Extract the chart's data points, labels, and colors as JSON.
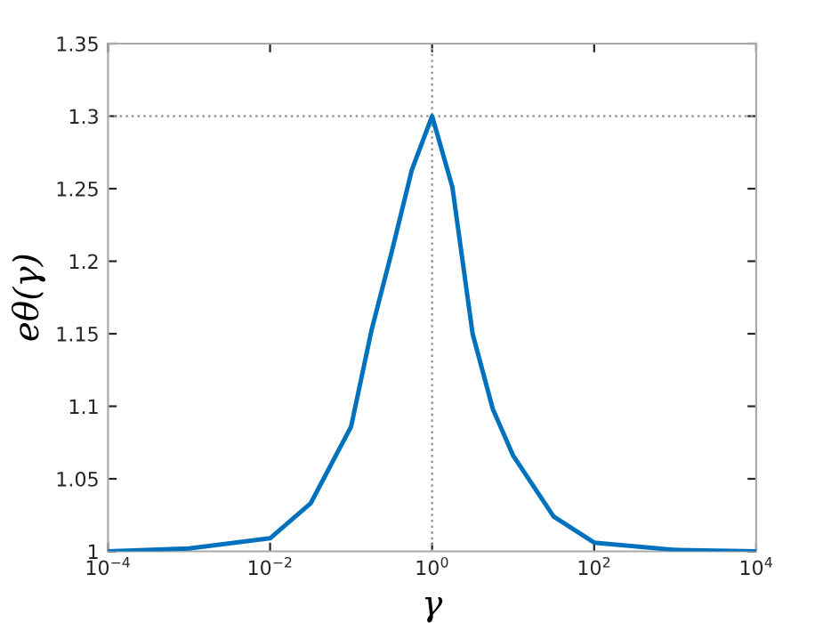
{
  "chart_data": {
    "type": "line",
    "xlabel": "γ",
    "ylabel": "eθ(γ)",
    "log": "x",
    "x": [
      0.0001,
      0.001,
      0.01,
      0.0316,
      0.1,
      0.178,
      0.316,
      0.562,
      1,
      1.78,
      3.16,
      5.62,
      10,
      31.6,
      100,
      1000,
      10000
    ],
    "series": [
      {
        "color": "#0072bd",
        "values": [
          1.0,
          1.002,
          1.009,
          1.033,
          1.086,
          1.152,
          1.206,
          1.263,
          1.3,
          1.251,
          1.15,
          1.098,
          1.066,
          1.024,
          1.006,
          1.001,
          1.0
        ]
      }
    ],
    "xlim": [
      0.0001,
      10000
    ],
    "ylim": [
      1,
      1.35
    ],
    "xticks": [
      {
        "value": 0.0001,
        "label": "10$^{−4}$"
      },
      {
        "value": 0.01,
        "label": "10$^{−2}$"
      },
      {
        "value": 1,
        "label": "10$^{0}$"
      },
      {
        "value": 100,
        "label": "10$^{2}$"
      },
      {
        "value": 10000,
        "label": "10$^{4}$"
      }
    ],
    "yticks": [
      1,
      1.05,
      1.1,
      1.15,
      1.2,
      1.25,
      1.3,
      1.35
    ],
    "ref_lines": [
      {
        "axis": "x",
        "value": 1,
        "color": "#999999",
        "line_style": "dotted"
      },
      {
        "axis": "y",
        "value": 1.3,
        "color": "#999999",
        "line_style": "dotted"
      }
    ],
    "grid": false,
    "legend": false,
    "marker": "none",
    "line_style": "solid"
  }
}
